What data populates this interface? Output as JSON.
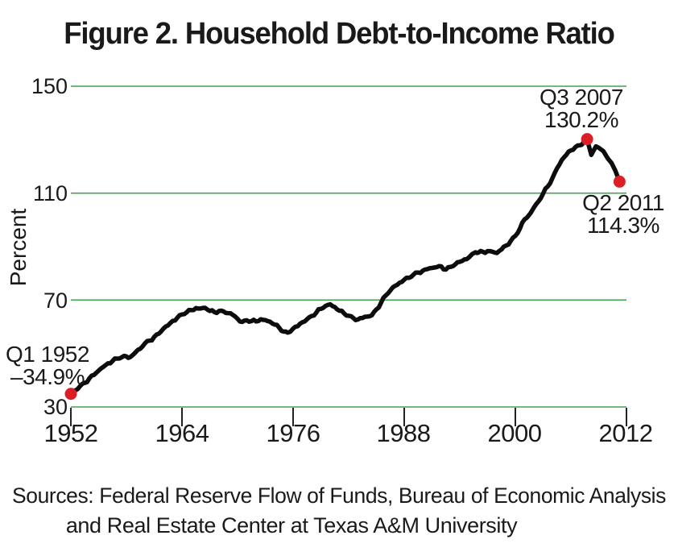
{
  "figure": {
    "title": "Figure 2. Household Debt-to-Income Ratio",
    "sources_line1": "Sources: Federal Reserve Flow of Funds, Bureau of Economic Analysis",
    "sources_line2": "and Real Estate Center at Texas A&M University"
  },
  "chart_data": {
    "type": "line",
    "title": "Figure 2. Household Debt-to-Income Ratio",
    "xlabel": "",
    "ylabel": "Percent",
    "xlim": [
      1952,
      2012
    ],
    "ylim": [
      30,
      150
    ],
    "yticks": [
      150,
      110,
      70,
      30
    ],
    "ytick_labels": [
      "150",
      "110",
      "70",
      "30"
    ],
    "xticks": [
      1952,
      1964,
      1976,
      1988,
      2000,
      2012
    ],
    "xtick_labels": [
      "1952",
      "1964",
      "1976",
      "1988",
      "2000",
      "2012"
    ],
    "grid": "horizontal lines at yticks",
    "legend": "none",
    "colors": {
      "line": "#0d0d0d",
      "grid": "#44a351",
      "marker": "#dc1f26",
      "text": "#1a1a1a"
    },
    "annotations": [
      {
        "label_line1": "Q3 2007",
        "label_line2": "130.2%",
        "year": 2007.75,
        "value": 130.2
      },
      {
        "label_line1": "Q2 2011",
        "label_line2": "114.3%",
        "year": 2011.25,
        "value": 114.3
      },
      {
        "label_line1": "Q1 1952",
        "label_line2": "–34.9%",
        "year": 1952.0,
        "value": 34.9
      }
    ],
    "series": [
      {
        "name": "Household debt-to-income ratio (percent)",
        "points": [
          [
            1952.0,
            34.9
          ],
          [
            1952.5,
            36.2
          ],
          [
            1953.0,
            37.8
          ],
          [
            1953.5,
            39.0
          ],
          [
            1954.0,
            40.7
          ],
          [
            1954.5,
            42.0
          ],
          [
            1955.0,
            43.6
          ],
          [
            1955.5,
            45.0
          ],
          [
            1956.0,
            46.3
          ],
          [
            1956.5,
            47.2
          ],
          [
            1957.0,
            48.1
          ],
          [
            1957.5,
            48.6
          ],
          [
            1958.0,
            48.9
          ],
          [
            1958.4,
            48.6
          ],
          [
            1959.0,
            50.5
          ],
          [
            1959.5,
            51.8
          ],
          [
            1960.0,
            53.8
          ],
          [
            1960.5,
            54.8
          ],
          [
            1961.0,
            56.2
          ],
          [
            1961.5,
            57.4
          ],
          [
            1962.0,
            59.3
          ],
          [
            1962.5,
            60.5
          ],
          [
            1963.0,
            62.2
          ],
          [
            1963.5,
            63.4
          ],
          [
            1964.0,
            64.6
          ],
          [
            1964.5,
            65.4
          ],
          [
            1965.0,
            66.2
          ],
          [
            1965.5,
            67.0
          ],
          [
            1966.0,
            66.8
          ],
          [
            1966.5,
            67.1
          ],
          [
            1967.0,
            65.9
          ],
          [
            1967.5,
            65.5
          ],
          [
            1968.0,
            65.9
          ],
          [
            1968.5,
            65.7
          ],
          [
            1969.0,
            65.1
          ],
          [
            1969.5,
            64.4
          ],
          [
            1970.0,
            63.0
          ],
          [
            1970.5,
            61.8
          ],
          [
            1971.0,
            62.4
          ],
          [
            1971.5,
            62.1
          ],
          [
            1972.0,
            62.0
          ],
          [
            1972.5,
            62.8
          ],
          [
            1973.0,
            62.5
          ],
          [
            1973.5,
            61.9
          ],
          [
            1974.0,
            60.8
          ],
          [
            1974.5,
            59.6
          ],
          [
            1975.0,
            58.2
          ],
          [
            1975.4,
            57.8
          ],
          [
            1976.0,
            59.3
          ],
          [
            1976.5,
            60.2
          ],
          [
            1977.0,
            61.7
          ],
          [
            1977.5,
            62.8
          ],
          [
            1978.0,
            64.0
          ],
          [
            1978.5,
            65.3
          ],
          [
            1979.0,
            66.7
          ],
          [
            1979.5,
            67.8
          ],
          [
            1980.0,
            68.4
          ],
          [
            1980.5,
            67.4
          ],
          [
            1981.0,
            66.0
          ],
          [
            1981.5,
            65.0
          ],
          [
            1982.0,
            64.1
          ],
          [
            1982.5,
            63.3
          ],
          [
            1983.0,
            62.7
          ],
          [
            1983.5,
            63.3
          ],
          [
            1984.0,
            63.8
          ],
          [
            1984.5,
            64.3
          ],
          [
            1985.0,
            66.5
          ],
          [
            1985.5,
            69.0
          ],
          [
            1986.0,
            71.7
          ],
          [
            1986.5,
            73.6
          ],
          [
            1987.0,
            75.3
          ],
          [
            1987.5,
            76.5
          ],
          [
            1988.0,
            77.6
          ],
          [
            1988.5,
            78.3
          ],
          [
            1989.0,
            79.5
          ],
          [
            1989.5,
            80.3
          ],
          [
            1990.0,
            81.0
          ],
          [
            1990.5,
            81.6
          ],
          [
            1991.0,
            82.0
          ],
          [
            1991.5,
            82.3
          ],
          [
            1992.0,
            82.6
          ],
          [
            1992.5,
            81.4
          ],
          [
            1993.0,
            82.4
          ],
          [
            1993.5,
            83.3
          ],
          [
            1994.0,
            84.3
          ],
          [
            1994.5,
            85.2
          ],
          [
            1995.0,
            86.0
          ],
          [
            1995.7,
            87.9
          ],
          [
            1996.0,
            87.7
          ],
          [
            1996.5,
            88.0
          ],
          [
            1997.0,
            88.3
          ],
          [
            1997.5,
            88.1
          ],
          [
            1998.0,
            87.6
          ],
          [
            1998.5,
            88.9
          ],
          [
            1999.0,
            90.4
          ],
          [
            1999.5,
            92.1
          ],
          [
            2000.0,
            94.0
          ],
          [
            2000.5,
            96.8
          ],
          [
            2001.0,
            100.2
          ],
          [
            2001.3,
            101.0
          ],
          [
            2002.0,
            104.6
          ],
          [
            2002.5,
            106.9
          ],
          [
            2003.0,
            109.8
          ],
          [
            2003.5,
            112.5
          ],
          [
            2004.0,
            115.6
          ],
          [
            2004.5,
            119.3
          ],
          [
            2005.0,
            122.3
          ],
          [
            2005.5,
            124.3
          ],
          [
            2006.0,
            126.0
          ],
          [
            2006.5,
            127.3
          ],
          [
            2007.0,
            127.9
          ],
          [
            2007.4,
            129.3
          ],
          [
            2007.75,
            130.2
          ],
          [
            2008.2,
            124.3
          ],
          [
            2008.7,
            127.5
          ],
          [
            2009.0,
            127.0
          ],
          [
            2009.5,
            125.7
          ],
          [
            2010.0,
            122.9
          ],
          [
            2010.4,
            121.2
          ],
          [
            2010.8,
            118.4
          ],
          [
            2011.25,
            114.3
          ]
        ]
      }
    ]
  }
}
